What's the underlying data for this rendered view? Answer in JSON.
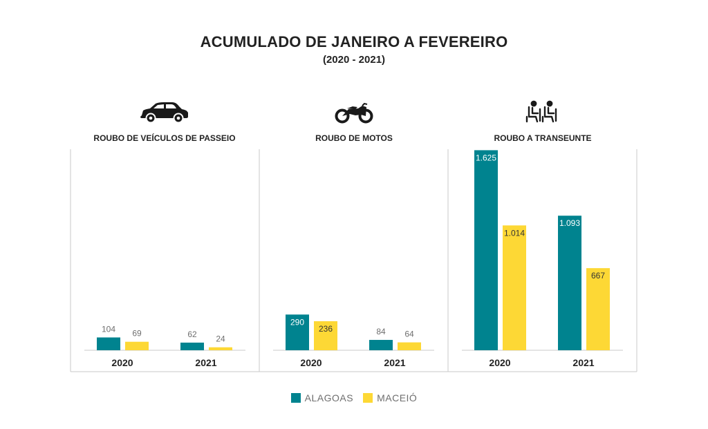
{
  "title": "ACUMULADO DE JANEIRO A FEVEREIRO",
  "subtitle": "(2020 - 2021)",
  "colors": {
    "alagoas": "#00838f",
    "maceio": "#fdd835",
    "frame": "#c8c8c8",
    "label_dark": "#555555"
  },
  "panels": [
    {
      "title": "ROUBO DE VEÍCULOS DE PASSEIO",
      "icon": "car-icon"
    },
    {
      "title": "ROUBO DE MOTOS",
      "icon": "motorcycle-icon"
    },
    {
      "title": "ROUBO A TRANSEUNTE",
      "icon": "pedestrians-icon"
    }
  ],
  "legend": {
    "alagoas": "ALAGOAS",
    "maceio": "MACEIÓ"
  },
  "chart_data": [
    {
      "type": "bar",
      "title": "ROUBO DE VEÍCULOS DE PASSEIO",
      "categories": [
        "2020",
        "2021"
      ],
      "series": [
        {
          "name": "ALAGOAS",
          "values": [
            104,
            62
          ],
          "labels": [
            "104",
            "62"
          ]
        },
        {
          "name": "MACEIÓ",
          "values": [
            69,
            24
          ],
          "labels": [
            "69",
            "24"
          ]
        }
      ],
      "ylim": [
        0,
        1700
      ]
    },
    {
      "type": "bar",
      "title": "ROUBO DE MOTOS",
      "categories": [
        "2020",
        "2021"
      ],
      "series": [
        {
          "name": "ALAGOAS",
          "values": [
            290,
            84
          ],
          "labels": [
            "290",
            "84"
          ]
        },
        {
          "name": "MACEIÓ",
          "values": [
            236,
            64
          ],
          "labels": [
            "236",
            "64"
          ]
        }
      ],
      "ylim": [
        0,
        1700
      ]
    },
    {
      "type": "bar",
      "title": "ROUBO A TRANSEUNTE",
      "categories": [
        "2020",
        "2021"
      ],
      "series": [
        {
          "name": "ALAGOAS",
          "values": [
            1625,
            1093
          ],
          "labels": [
            "1.625",
            "1.093"
          ]
        },
        {
          "name": "MACEIÓ",
          "values": [
            1014,
            667
          ],
          "labels": [
            "1.014",
            "667"
          ]
        }
      ],
      "ylim": [
        0,
        1700
      ]
    }
  ]
}
